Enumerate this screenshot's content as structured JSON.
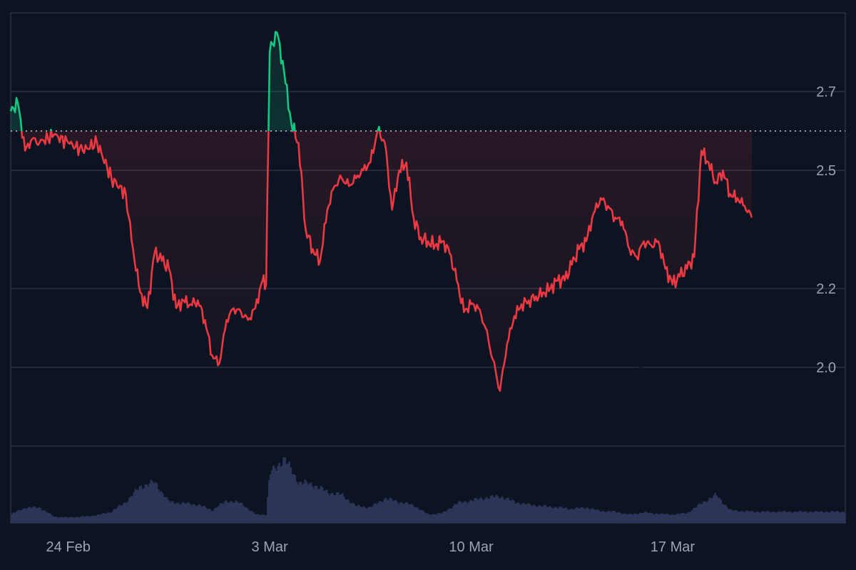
{
  "chart_data": {
    "type": "area",
    "baseline": 2.6,
    "ylim": [
      1.8,
      2.9
    ],
    "yticks": [
      2.0,
      2.2,
      2.5,
      2.7
    ],
    "xticks": [
      {
        "date": "2025-02-24",
        "label": "24 Feb"
      },
      {
        "date": "2025-03-03",
        "label": "3 Mar"
      },
      {
        "date": "2025-03-10",
        "label": "10 Mar"
      },
      {
        "date": "2025-03-17",
        "label": "17 Mar"
      }
    ],
    "xlim": [
      "2025-02-22",
      "2025-03-23"
    ],
    "annotation": "5",
    "grid": true,
    "colors": {
      "background": "#0d1421",
      "up_line": "#16c784",
      "down_line": "#ea3943",
      "up_fill": "#16c784",
      "down_fill": "#ea3943",
      "volume": "#2c3557",
      "grid": "#2a3344",
      "baseline_dots": "#c8ccd4",
      "axis_text": "#9aa3b2"
    },
    "series": [
      {
        "values": [
          [
            "2025-02-22",
            2.65
          ],
          [
            "2025-02-22T06:00",
            2.67
          ],
          [
            "2025-02-22T12:00",
            2.55
          ],
          [
            "2025-02-22T18:00",
            2.58
          ],
          [
            "2025-02-23",
            2.57
          ],
          [
            "2025-02-23T12:00",
            2.59
          ],
          [
            "2025-02-24",
            2.57
          ],
          [
            "2025-02-24T12:00",
            2.55
          ],
          [
            "2025-02-25",
            2.57
          ],
          [
            "2025-02-25T12:00",
            2.48
          ],
          [
            "2025-02-26",
            2.44
          ],
          [
            "2025-02-26T06:00",
            2.3
          ],
          [
            "2025-02-26T12:00",
            2.19
          ],
          [
            "2025-02-26T18:00",
            2.15
          ],
          [
            "2025-02-27",
            2.29
          ],
          [
            "2025-02-27T06:00",
            2.27
          ],
          [
            "2025-02-27T12:00",
            2.25
          ],
          [
            "2025-02-27T18:00",
            2.15
          ],
          [
            "2025-02-28",
            2.17
          ],
          [
            "2025-02-28T06:00",
            2.16
          ],
          [
            "2025-02-28T12:00",
            2.17
          ],
          [
            "2025-02-28T18:00",
            2.12
          ],
          [
            "2025-03-01",
            2.03
          ],
          [
            "2025-03-01T06:00",
            2.01
          ],
          [
            "2025-03-01T12:00",
            2.12
          ],
          [
            "2025-03-01T18:00",
            2.15
          ],
          [
            "2025-03-02",
            2.14
          ],
          [
            "2025-03-02T06:00",
            2.12
          ],
          [
            "2025-03-02T12:00",
            2.15
          ],
          [
            "2025-03-02T18:00",
            2.22
          ],
          [
            "2025-03-02T21:00",
            2.21
          ],
          [
            "2025-03-03",
            2.8
          ],
          [
            "2025-03-03T06:00",
            2.85
          ],
          [
            "2025-03-03T12:00",
            2.75
          ],
          [
            "2025-03-03T18:00",
            2.62
          ],
          [
            "2025-03-04",
            2.57
          ],
          [
            "2025-03-04T06:00",
            2.35
          ],
          [
            "2025-03-04T12:00",
            2.3
          ],
          [
            "2025-03-04T18:00",
            2.27
          ],
          [
            "2025-03-05",
            2.4
          ],
          [
            "2025-03-05T06:00",
            2.46
          ],
          [
            "2025-03-05T12:00",
            2.48
          ],
          [
            "2025-03-05T18:00",
            2.46
          ],
          [
            "2025-03-06",
            2.48
          ],
          [
            "2025-03-06T06:00",
            2.5
          ],
          [
            "2025-03-06T12:00",
            2.52
          ],
          [
            "2025-03-06T18:00",
            2.6
          ],
          [
            "2025-03-07",
            2.57
          ],
          [
            "2025-03-07T06:00",
            2.4
          ],
          [
            "2025-03-07T12:00",
            2.5
          ],
          [
            "2025-03-07T18:00",
            2.52
          ],
          [
            "2025-03-08",
            2.38
          ],
          [
            "2025-03-08T06:00",
            2.33
          ],
          [
            "2025-03-08T12:00",
            2.32
          ],
          [
            "2025-03-08T18:00",
            2.31
          ],
          [
            "2025-03-09",
            2.32
          ],
          [
            "2025-03-09T06:00",
            2.29
          ],
          [
            "2025-03-09T12:00",
            2.22
          ],
          [
            "2025-03-09T18:00",
            2.14
          ],
          [
            "2025-03-10",
            2.16
          ],
          [
            "2025-03-10T06:00",
            2.15
          ],
          [
            "2025-03-10T12:00",
            2.1
          ],
          [
            "2025-03-10T18:00",
            2.02
          ],
          [
            "2025-03-11",
            1.94
          ],
          [
            "2025-03-11T06:00",
            2.06
          ],
          [
            "2025-03-11T12:00",
            2.13
          ],
          [
            "2025-03-11T18:00",
            2.16
          ],
          [
            "2025-03-12",
            2.17
          ],
          [
            "2025-03-12T06:00",
            2.18
          ],
          [
            "2025-03-12T12:00",
            2.19
          ],
          [
            "2025-03-12T18:00",
            2.2
          ],
          [
            "2025-03-13",
            2.22
          ],
          [
            "2025-03-13T06:00",
            2.22
          ],
          [
            "2025-03-13T12:00",
            2.26
          ],
          [
            "2025-03-13T18:00",
            2.3
          ],
          [
            "2025-03-14",
            2.32
          ],
          [
            "2025-03-14T06:00",
            2.39
          ],
          [
            "2025-03-14T12:00",
            2.43
          ],
          [
            "2025-03-14T18:00",
            2.41
          ],
          [
            "2025-03-15",
            2.38
          ],
          [
            "2025-03-15T06:00",
            2.37
          ],
          [
            "2025-03-15T12:00",
            2.3
          ],
          [
            "2025-03-15T18:00",
            2.28
          ],
          [
            "2025-03-16",
            2.32
          ],
          [
            "2025-03-16T06:00",
            2.31
          ],
          [
            "2025-03-16T12:00",
            2.32
          ],
          [
            "2025-03-16T18:00",
            2.25
          ],
          [
            "2025-03-17",
            2.21
          ],
          [
            "2025-03-17T06:00",
            2.23
          ],
          [
            "2025-03-17T12:00",
            2.25
          ],
          [
            "2025-03-17T18:00",
            2.28
          ],
          [
            "2025-03-18",
            2.55
          ],
          [
            "2025-03-18T06:00",
            2.52
          ],
          [
            "2025-03-18T12:00",
            2.47
          ],
          [
            "2025-03-18T18:00",
            2.5
          ],
          [
            "2025-03-19",
            2.44
          ],
          [
            "2025-03-19T06:00",
            2.43
          ],
          [
            "2025-03-19T12:00",
            2.41
          ],
          [
            "2025-03-19T18:00",
            2.38
          ]
        ]
      }
    ],
    "volume": [
      [
        "2025-02-22",
        0.12
      ],
      [
        "2025-02-22T12:00",
        0.22
      ],
      [
        "2025-02-23",
        0.22
      ],
      [
        "2025-02-23T12:00",
        0.09
      ],
      [
        "2025-02-24",
        0.08
      ],
      [
        "2025-02-24T12:00",
        0.09
      ],
      [
        "2025-02-25",
        0.11
      ],
      [
        "2025-02-25T12:00",
        0.16
      ],
      [
        "2025-02-26",
        0.3
      ],
      [
        "2025-02-26T12:00",
        0.52
      ],
      [
        "2025-02-27",
        0.58
      ],
      [
        "2025-02-27T12:00",
        0.3
      ],
      [
        "2025-02-28",
        0.28
      ],
      [
        "2025-02-28T12:00",
        0.26
      ],
      [
        "2025-03-01",
        0.18
      ],
      [
        "2025-03-01T12:00",
        0.32
      ],
      [
        "2025-03-02",
        0.28
      ],
      [
        "2025-03-02T12:00",
        0.12
      ],
      [
        "2025-03-02T21:00",
        0.12
      ],
      [
        "2025-03-03",
        0.7
      ],
      [
        "2025-03-03T12:00",
        0.92
      ],
      [
        "2025-03-04",
        0.58
      ],
      [
        "2025-03-04T12:00",
        0.55
      ],
      [
        "2025-03-05",
        0.44
      ],
      [
        "2025-03-05T12:00",
        0.4
      ],
      [
        "2025-03-06",
        0.24
      ],
      [
        "2025-03-06T12:00",
        0.22
      ],
      [
        "2025-03-07",
        0.35
      ],
      [
        "2025-03-07T12:00",
        0.3
      ],
      [
        "2025-03-08",
        0.25
      ],
      [
        "2025-03-08T12:00",
        0.12
      ],
      [
        "2025-03-09",
        0.14
      ],
      [
        "2025-03-09T12:00",
        0.28
      ],
      [
        "2025-03-10",
        0.32
      ],
      [
        "2025-03-10T12:00",
        0.36
      ],
      [
        "2025-03-11",
        0.38
      ],
      [
        "2025-03-11T12:00",
        0.3
      ],
      [
        "2025-03-12",
        0.26
      ],
      [
        "2025-03-12T12:00",
        0.24
      ],
      [
        "2025-03-13",
        0.22
      ],
      [
        "2025-03-13T12:00",
        0.2
      ],
      [
        "2025-03-14",
        0.22
      ],
      [
        "2025-03-14T12:00",
        0.17
      ],
      [
        "2025-03-15",
        0.16
      ],
      [
        "2025-03-15T12:00",
        0.12
      ],
      [
        "2025-03-16",
        0.15
      ],
      [
        "2025-03-16T12:00",
        0.13
      ],
      [
        "2025-03-17",
        0.12
      ],
      [
        "2025-03-17T12:00",
        0.14
      ],
      [
        "2025-03-18",
        0.28
      ],
      [
        "2025-03-18T12:00",
        0.4
      ],
      [
        "2025-03-19",
        0.18
      ],
      [
        "2025-03-19T18:00",
        0.16
      ]
    ]
  }
}
